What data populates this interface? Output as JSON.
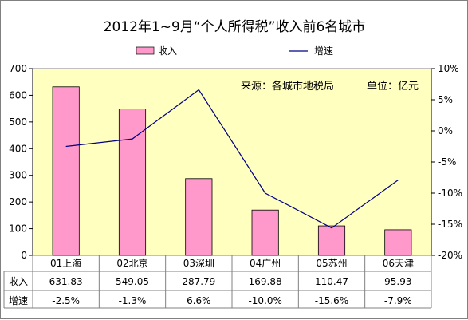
{
  "chart_data": {
    "type": "bar",
    "title": "2012年1~9月“个人所得税”收入前6名城市",
    "categories": [
      "01上海",
      "02北京",
      "03深圳",
      "04广州",
      "05苏州",
      "06天津"
    ],
    "series": [
      {
        "name": "收入",
        "type": "bar",
        "axis": "left",
        "color": "#FF99CC",
        "values": [
          631.83,
          549.05,
          287.79,
          169.88,
          110.47,
          95.93
        ]
      },
      {
        "name": "增速",
        "type": "line",
        "axis": "right",
        "color": "#000080",
        "values": [
          -2.5,
          -1.3,
          6.6,
          -10.0,
          -15.6,
          -7.9
        ]
      }
    ],
    "table_rows": [
      {
        "label": "收入",
        "cells": [
          "631.83",
          "549.05",
          "287.79",
          "169.88",
          "110.47",
          "95.93"
        ]
      },
      {
        "label": "增速",
        "cells": [
          "-2.5%",
          "-1.3%",
          "6.6%",
          "-10.0%",
          "-15.6%",
          "-7.9%"
        ]
      }
    ],
    "y_left": {
      "min": 0,
      "max": 700,
      "step": 100,
      "ticks": [
        "0",
        "100",
        "200",
        "300",
        "400",
        "500",
        "600",
        "700"
      ]
    },
    "y_right": {
      "min": -20,
      "max": 10,
      "step": 5,
      "ticks": [
        "-20%",
        "-15%",
        "-10%",
        "-5%",
        "0%",
        "5%",
        "10%"
      ]
    },
    "annotations": {
      "source": "来源：各城市地税局",
      "unit": "单位：亿元"
    },
    "plot_background": "#FFFFC0",
    "legend": "top",
    "grid": false
  }
}
